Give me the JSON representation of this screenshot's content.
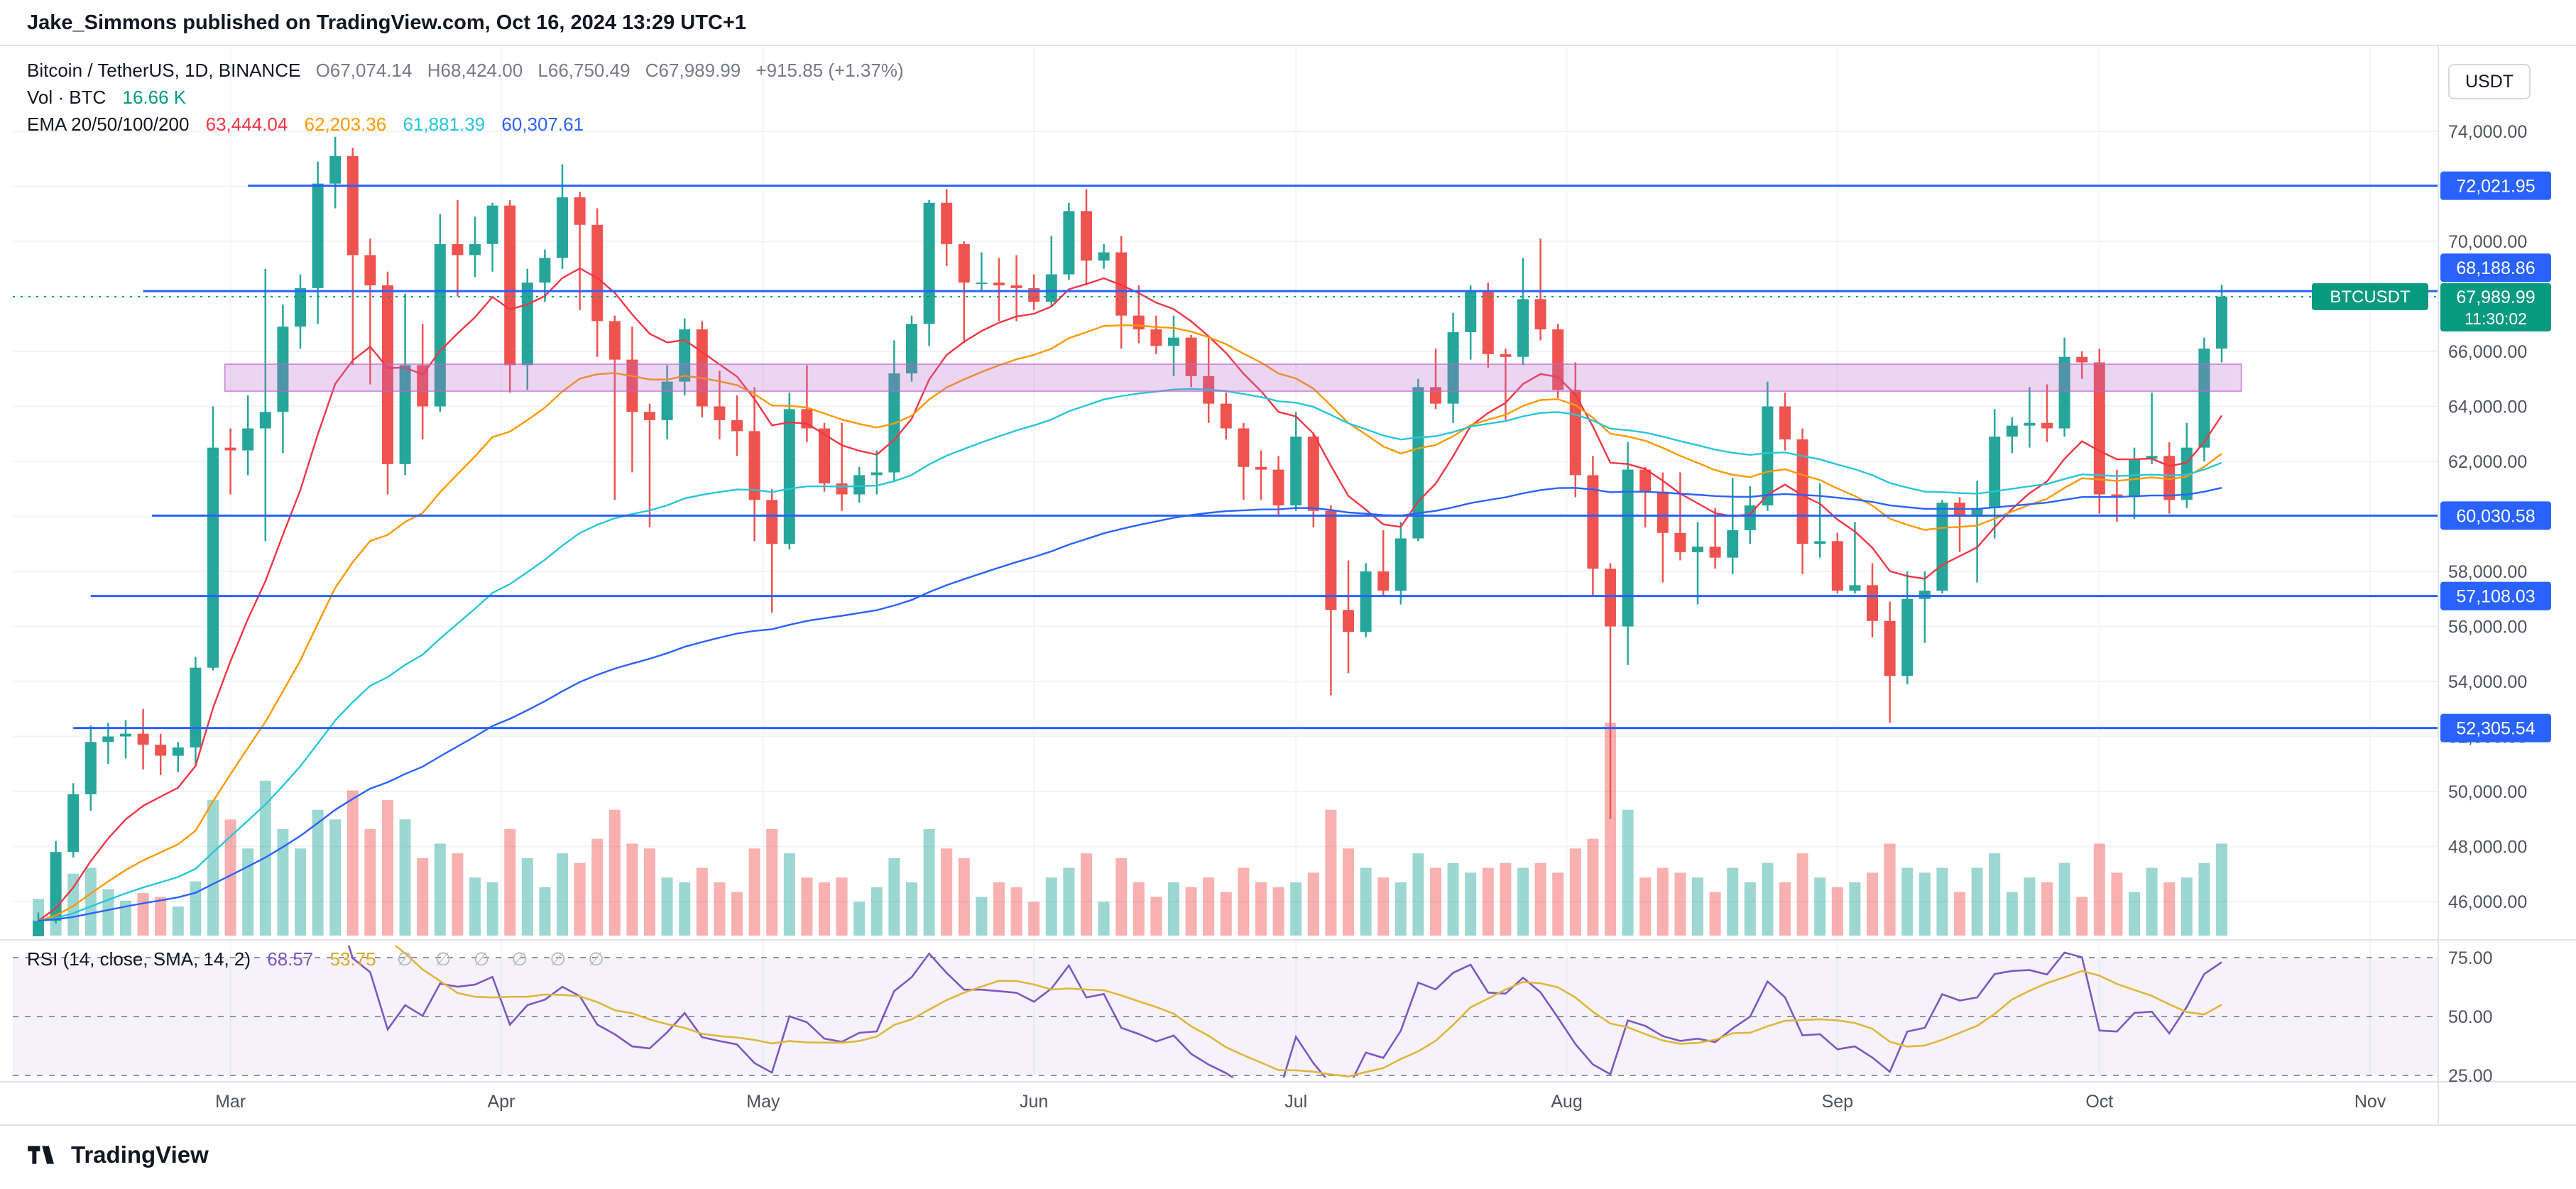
{
  "attribution": "Jake_Simmons published on TradingView.com, Oct 16, 2024 13:29 UTC+1",
  "legend": {
    "symbol_title": "Bitcoin / TetherUS, 1D, BINANCE",
    "ohlc": {
      "o_label": "O",
      "o": "67,074.14",
      "h_label": "H",
      "h": "68,424.00",
      "l_label": "L",
      "l": "66,750.49",
      "c_label": "C",
      "c": "67,989.99",
      "change": "+915.85 (+1.37%)"
    },
    "volume": {
      "label": "Vol · BTC",
      "value": "16.66 K",
      "value_color": "#089981"
    },
    "ema": {
      "label": "EMA 20/50/100/200",
      "values": [
        "63,444.04",
        "62,203.36",
        "61,881.39",
        "60,307.61"
      ],
      "colors": [
        "#f23645",
        "#ff9800",
        "#26c6da",
        "#2962ff"
      ]
    },
    "rsi": {
      "label": "RSI (14, close, SMA, 14, 2)",
      "value": "68.57",
      "value_color": "#7e57c2",
      "sma_value": "53.75",
      "sma_color": "#d9a82e",
      "empty_slots": "∅ ∅ ∅ ∅ ∅ ∅"
    }
  },
  "price_scale": {
    "currency_label": "USDT",
    "ticks": [
      "74,000.00",
      "72,000.00",
      "70,000.00",
      "68,000.00",
      "66,000.00",
      "64,000.00",
      "62,000.00",
      "60,000.00",
      "58,000.00",
      "56,000.00",
      "54,000.00",
      "52,000.00",
      "50,000.00",
      "48,000.00",
      "46,000.00"
    ],
    "tick_values": [
      74000,
      72000,
      70000,
      68000,
      66000,
      64000,
      62000,
      60000,
      58000,
      56000,
      54000,
      52000,
      50000,
      48000,
      46000
    ],
    "level_badges": [
      {
        "label": "72,021.95",
        "value": 72021.95
      },
      {
        "label": "68,188.86",
        "value": 68188.86
      },
      {
        "label": "60,030.58",
        "value": 60030.58
      },
      {
        "label": "57,108.03",
        "value": 57108.03
      },
      {
        "label": "52,305.54",
        "value": 52305.54
      }
    ],
    "last_price_badge": {
      "price_label": "67,989.99",
      "countdown": "11:30:02",
      "value": 67989.99,
      "color": "#089981"
    },
    "symbol_tag": "BTCUSDT"
  },
  "rsi_scale": {
    "ticks": [
      "75.00",
      "50.00",
      "25.00"
    ],
    "tick_values": [
      75,
      50,
      25
    ]
  },
  "time_scale": {
    "months": [
      {
        "label": "Mar",
        "bar": 11
      },
      {
        "label": "Apr",
        "bar": 26.5
      },
      {
        "label": "May",
        "bar": 41.5
      },
      {
        "label": "Jun",
        "bar": 57
      },
      {
        "label": "Jul",
        "bar": 72
      },
      {
        "label": "Aug",
        "bar": 87.5
      },
      {
        "label": "Sep",
        "bar": 103
      },
      {
        "label": "Oct",
        "bar": 118
      },
      {
        "label": "Nov",
        "bar": 133.5
      }
    ]
  },
  "footer": {
    "brand": "TradingView"
  },
  "chart_data": {
    "type": "candlestick",
    "symbol": "BTCUSDT",
    "exchange": "BINANCE",
    "interval": "1D",
    "price_unit": "thousand USDT per entry; volume in K BTC",
    "bar_interval_days": 2,
    "ylim": [
      44800,
      76900
    ],
    "last_price": 67989.99,
    "ohlcv": [
      [
        44.3,
        45.6,
        44.0,
        45.3,
        38
      ],
      [
        45.3,
        48.2,
        45.2,
        47.8,
        52
      ],
      [
        47.8,
        50.3,
        47.6,
        49.9,
        64
      ],
      [
        49.9,
        52.4,
        49.3,
        51.8,
        70
      ],
      [
        51.8,
        52.5,
        51.0,
        52.0,
        48
      ],
      [
        52.0,
        52.6,
        51.2,
        52.1,
        36
      ],
      [
        52.1,
        53.0,
        50.8,
        51.7,
        44
      ],
      [
        51.7,
        52.1,
        50.6,
        51.3,
        40
      ],
      [
        51.3,
        51.8,
        50.7,
        51.6,
        30
      ],
      [
        51.6,
        54.9,
        50.9,
        54.5,
        56
      ],
      [
        54.5,
        64.0,
        54.4,
        62.5,
        140
      ],
      [
        62.5,
        63.2,
        60.8,
        62.4,
        120
      ],
      [
        62.4,
        64.4,
        61.5,
        63.2,
        90
      ],
      [
        63.2,
        69.0,
        59.1,
        63.8,
        160
      ],
      [
        63.8,
        67.7,
        62.3,
        66.9,
        110
      ],
      [
        66.9,
        68.8,
        66.1,
        68.3,
        90
      ],
      [
        68.3,
        72.9,
        67.0,
        72.1,
        130
      ],
      [
        72.1,
        73.8,
        71.2,
        73.1,
        120
      ],
      [
        73.1,
        73.4,
        65.5,
        69.5,
        150
      ],
      [
        69.5,
        70.1,
        64.8,
        68.4,
        110
      ],
      [
        68.4,
        68.9,
        60.8,
        61.9,
        140
      ],
      [
        61.9,
        68.1,
        61.5,
        65.5,
        120
      ],
      [
        65.5,
        67.0,
        62.8,
        64.0,
        80
      ],
      [
        64.0,
        71.0,
        63.8,
        69.9,
        95
      ],
      [
        69.9,
        71.5,
        68.0,
        69.5,
        85
      ],
      [
        69.5,
        70.9,
        68.7,
        69.9,
        60
      ],
      [
        69.9,
        71.4,
        68.9,
        71.3,
        55
      ],
      [
        71.3,
        71.5,
        64.5,
        65.5,
        110
      ],
      [
        65.5,
        69.0,
        64.6,
        68.5,
        80
      ],
      [
        68.5,
        69.7,
        67.8,
        69.4,
        50
      ],
      [
        69.4,
        72.8,
        69.0,
        71.6,
        85
      ],
      [
        71.6,
        71.8,
        67.5,
        70.6,
        75
      ],
      [
        70.6,
        71.2,
        65.8,
        67.1,
        100
      ],
      [
        67.1,
        67.3,
        60.6,
        65.7,
        130
      ],
      [
        65.7,
        66.9,
        61.6,
        63.8,
        95
      ],
      [
        63.8,
        64.1,
        59.6,
        63.5,
        90
      ],
      [
        63.5,
        65.5,
        62.8,
        64.9,
        60
      ],
      [
        64.9,
        67.2,
        64.4,
        66.8,
        55
      ],
      [
        66.8,
        67.1,
        63.6,
        64.0,
        70
      ],
      [
        64.0,
        65.3,
        62.8,
        63.5,
        55
      ],
      [
        63.5,
        64.4,
        62.2,
        63.1,
        45
      ],
      [
        63.1,
        64.7,
        59.1,
        60.6,
        90
      ],
      [
        60.6,
        61.0,
        56.5,
        59.0,
        110
      ],
      [
        59.0,
        64.5,
        58.8,
        63.9,
        85
      ],
      [
        63.9,
        65.5,
        62.7,
        63.2,
        60
      ],
      [
        63.2,
        63.4,
        60.9,
        61.2,
        55
      ],
      [
        61.2,
        63.4,
        60.2,
        60.8,
        60
      ],
      [
        60.8,
        61.8,
        60.5,
        61.5,
        35
      ],
      [
        61.5,
        62.4,
        60.8,
        61.6,
        50
      ],
      [
        61.6,
        66.4,
        61.3,
        65.2,
        80
      ],
      [
        65.2,
        67.3,
        64.9,
        67.0,
        55
      ],
      [
        67.0,
        71.5,
        66.2,
        71.4,
        110
      ],
      [
        71.4,
        71.9,
        69.1,
        69.9,
        90
      ],
      [
        69.9,
        70.0,
        66.3,
        68.5,
        80
      ],
      [
        68.5,
        69.6,
        68.2,
        68.5,
        40
      ],
      [
        68.5,
        69.4,
        67.1,
        68.4,
        55
      ],
      [
        68.4,
        69.5,
        67.1,
        68.3,
        50
      ],
      [
        68.3,
        68.8,
        67.5,
        67.8,
        35
      ],
      [
        67.8,
        70.2,
        67.6,
        68.8,
        60
      ],
      [
        68.8,
        71.4,
        68.6,
        71.1,
        70
      ],
      [
        71.1,
        71.9,
        68.4,
        69.3,
        85
      ],
      [
        69.3,
        69.9,
        69.0,
        69.6,
        35
      ],
      [
        69.6,
        70.2,
        66.1,
        67.3,
        80
      ],
      [
        67.3,
        68.4,
        66.3,
        66.8,
        55
      ],
      [
        66.8,
        67.3,
        65.9,
        66.2,
        40
      ],
      [
        66.2,
        67.3,
        65.1,
        66.5,
        55
      ],
      [
        66.5,
        66.6,
        64.7,
        65.1,
        50
      ],
      [
        65.1,
        66.5,
        63.4,
        64.1,
        60
      ],
      [
        64.1,
        64.5,
        62.8,
        63.2,
        45
      ],
      [
        63.2,
        63.4,
        60.6,
        61.8,
        70
      ],
      [
        61.8,
        62.4,
        60.6,
        61.7,
        55
      ],
      [
        61.7,
        62.2,
        60.0,
        60.4,
        50
      ],
      [
        60.4,
        63.8,
        60.2,
        62.9,
        55
      ],
      [
        62.9,
        63.0,
        59.6,
        60.2,
        65
      ],
      [
        60.2,
        60.4,
        53.5,
        56.6,
        130
      ],
      [
        56.6,
        58.4,
        54.3,
        55.8,
        90
      ],
      [
        55.8,
        58.3,
        55.6,
        58.0,
        70
      ],
      [
        58.0,
        59.5,
        57.1,
        57.3,
        60
      ],
      [
        57.3,
        59.8,
        56.8,
        59.2,
        55
      ],
      [
        59.2,
        65.0,
        59.1,
        64.7,
        85
      ],
      [
        64.7,
        66.1,
        63.9,
        64.1,
        70
      ],
      [
        64.1,
        67.4,
        63.4,
        66.7,
        75
      ],
      [
        66.7,
        68.4,
        65.7,
        68.2,
        65
      ],
      [
        68.2,
        68.5,
        65.4,
        65.9,
        70
      ],
      [
        65.9,
        66.1,
        63.5,
        65.8,
        75
      ],
      [
        65.8,
        69.4,
        65.5,
        67.9,
        70
      ],
      [
        67.9,
        70.1,
        66.4,
        66.8,
        75
      ],
      [
        66.8,
        67.0,
        64.3,
        64.6,
        65
      ],
      [
        64.6,
        65.6,
        60.7,
        61.5,
        90
      ],
      [
        61.5,
        62.2,
        57.1,
        58.1,
        100
      ],
      [
        58.1,
        58.3,
        49.0,
        56.0,
        220
      ],
      [
        56.0,
        62.7,
        54.6,
        61.7,
        130
      ],
      [
        61.7,
        61.8,
        59.6,
        60.9,
        60
      ],
      [
        60.9,
        61.6,
        57.6,
        59.4,
        70
      ],
      [
        59.4,
        61.6,
        58.4,
        58.7,
        65
      ],
      [
        58.7,
        59.8,
        56.8,
        58.9,
        60
      ],
      [
        58.9,
        60.3,
        58.1,
        58.5,
        45
      ],
      [
        58.5,
        61.4,
        57.9,
        59.5,
        70
      ],
      [
        59.5,
        61.1,
        59.0,
        60.4,
        55
      ],
      [
        60.4,
        64.9,
        60.2,
        64.0,
        75
      ],
      [
        64.0,
        64.5,
        62.4,
        62.8,
        55
      ],
      [
        62.8,
        63.2,
        57.9,
        59.0,
        85
      ],
      [
        59.0,
        61.2,
        58.5,
        59.1,
        60
      ],
      [
        59.1,
        59.4,
        57.2,
        57.3,
        50
      ],
      [
        57.3,
        59.8,
        57.2,
        57.5,
        55
      ],
      [
        57.5,
        58.3,
        55.6,
        56.2,
        65
      ],
      [
        56.2,
        56.9,
        52.5,
        54.2,
        95
      ],
      [
        54.2,
        58.0,
        53.9,
        57.0,
        70
      ],
      [
        57.0,
        58.0,
        55.4,
        57.3,
        65
      ],
      [
        57.3,
        60.6,
        57.2,
        60.5,
        70
      ],
      [
        60.5,
        60.7,
        58.7,
        60.0,
        45
      ],
      [
        60.0,
        61.3,
        57.6,
        60.3,
        70
      ],
      [
        60.3,
        63.9,
        59.2,
        62.9,
        85
      ],
      [
        62.9,
        63.6,
        62.3,
        63.3,
        45
      ],
      [
        63.3,
        64.7,
        62.5,
        63.4,
        60
      ],
      [
        63.4,
        64.8,
        62.7,
        63.2,
        55
      ],
      [
        63.2,
        66.5,
        62.9,
        65.8,
        75
      ],
      [
        65.8,
        66.0,
        65.0,
        65.6,
        40
      ],
      [
        65.6,
        66.1,
        60.1,
        60.8,
        95
      ],
      [
        60.8,
        61.7,
        59.8,
        60.7,
        65
      ],
      [
        60.7,
        62.5,
        59.9,
        62.1,
        45
      ],
      [
        62.1,
        64.5,
        61.9,
        62.2,
        70
      ],
      [
        62.2,
        62.7,
        60.1,
        60.6,
        55
      ],
      [
        60.6,
        63.4,
        60.3,
        62.5,
        60
      ],
      [
        62.5,
        66.5,
        62.0,
        66.1,
        75
      ],
      [
        66.1,
        68.42,
        65.6,
        67.99,
        95
      ]
    ],
    "levels": [
      {
        "value": 72021.95,
        "from_bar": 12,
        "color": "#2962ff"
      },
      {
        "value": 68188.86,
        "from_bar": 6,
        "color": "#2962ff"
      },
      {
        "value": 60030.58,
        "from_bar": 6.5,
        "color": "#2962ff"
      },
      {
        "value": 57108.03,
        "from_bar": 3,
        "color": "#2962ff"
      },
      {
        "value": 52305.54,
        "from_bar": 2,
        "color": "#2962ff"
      }
    ],
    "zone": {
      "top": 65535,
      "bottom": 64550,
      "from_bar": 11,
      "to_bar": 125.8,
      "fill": "rgba(186,104,200,0.28)",
      "stroke": "rgba(186,104,200,0.65)"
    },
    "ema": {
      "periods_days": [
        20,
        50,
        100,
        200
      ],
      "colors": [
        "#f23645",
        "#ff9800",
        "#26c6da",
        "#2962ff"
      ]
    },
    "rsi": {
      "period_days": 14,
      "smoothing_days": 14,
      "line_color": "#7e57c2",
      "sma_color": "#e0b63f",
      "levels": [
        75,
        50,
        25
      ],
      "band_fill": "rgba(126,87,194,0.08)"
    },
    "candle_colors": {
      "up": "#26a69a",
      "down": "#ef5350"
    },
    "volume_colors": {
      "up": "rgba(38,166,154,0.45)",
      "down": "rgba(239,83,80,0.45)"
    }
  }
}
